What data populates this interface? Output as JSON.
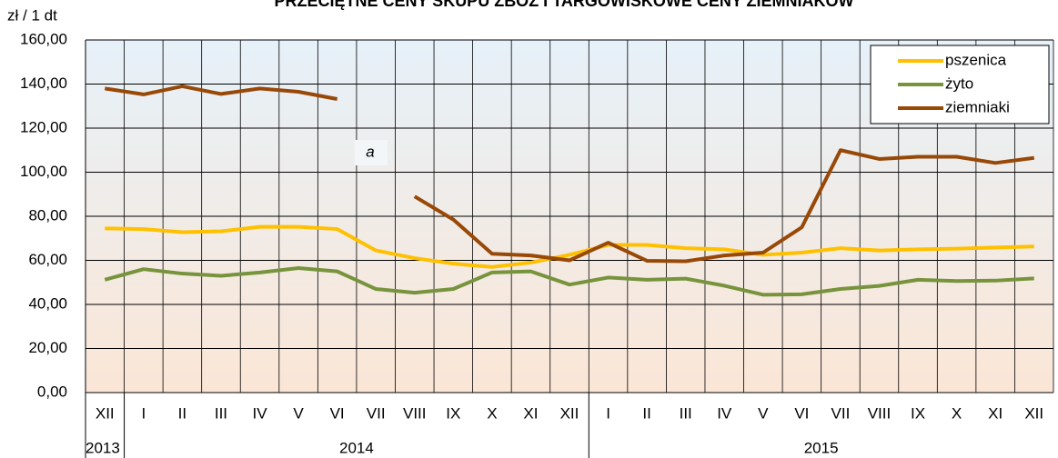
{
  "chart_data": {
    "type": "line",
    "title": "PRZECIĘTNE CENY SKUPU ZBÓŻ I TARGOWISKOWE CENY ZIEMNIAKÓW",
    "y_label": "zł / 1 dt",
    "categories": [
      "XII",
      "I",
      "II",
      "III",
      "IV",
      "V",
      "VI",
      "VII",
      "VIII",
      "IX",
      "X",
      "XI",
      "XII",
      "I",
      "II",
      "III",
      "IV",
      "V",
      "VI",
      "VII",
      "VIII",
      "IX",
      "X",
      "XI",
      "XII"
    ],
    "years": [
      "2013",
      "2014",
      "2015"
    ],
    "series": [
      {
        "name": "pszenica",
        "color": "#ffc000",
        "values": [
          74.5,
          74.2,
          72.8,
          73.2,
          75.2,
          75.2,
          74.2,
          64.5,
          61,
          58.5,
          57,
          59,
          62.5,
          67,
          67,
          65.5,
          65,
          62.5,
          63.5,
          65.5,
          64.5,
          65,
          65.3,
          65.8,
          66.3
        ]
      },
      {
        "name": "żyto",
        "color": "#77933c",
        "values": [
          51.2,
          56,
          54,
          53,
          54.5,
          56.5,
          55,
          47,
          45.3,
          47,
          54.5,
          55,
          49,
          52.2,
          51.2,
          51.7,
          48.5,
          44.4,
          44.6,
          47,
          48.4,
          51.2,
          50.6,
          50.8,
          51.8
        ]
      },
      {
        "name": "ziemniaki",
        "color": "#984807",
        "values": [
          138,
          135.3,
          139,
          135.5,
          138,
          136.5,
          133.2,
          null,
          89,
          78.5,
          63,
          62.2,
          60,
          68,
          59.8,
          59.6,
          62.2,
          63.5,
          75,
          110,
          106,
          107,
          107,
          104.2,
          106.5
        ]
      }
    ],
    "annotations": [
      "a"
    ],
    "ylim": [
      0,
      160
    ],
    "yticks": [
      {
        "value": 0,
        "label": "0,00"
      },
      {
        "value": 20,
        "label": "20,00"
      },
      {
        "value": 40,
        "label": "40,00"
      },
      {
        "value": 60,
        "label": "60,00"
      },
      {
        "value": 80,
        "label": "80,00"
      },
      {
        "value": 100,
        "label": "100,00"
      },
      {
        "value": 120,
        "label": "120,00"
      },
      {
        "value": 140,
        "label": "140,00"
      },
      {
        "value": 160,
        "label": "160,00"
      }
    ],
    "grid": true,
    "legend": "top-right"
  }
}
